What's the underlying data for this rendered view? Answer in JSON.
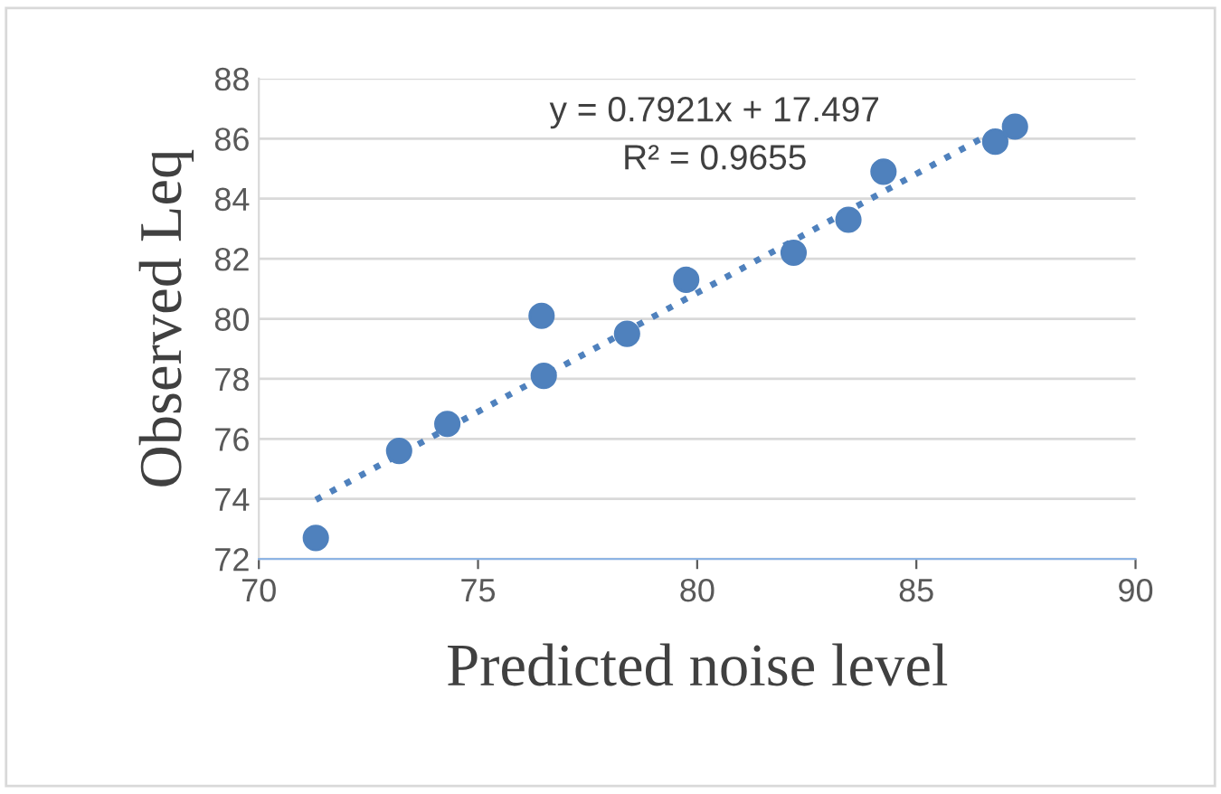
{
  "chart_data": {
    "type": "scatter",
    "xlabel": "Predicted noise level",
    "ylabel": "Observed Leq",
    "xlim": [
      70,
      90
    ],
    "xticks": [
      70,
      75,
      80,
      85,
      90
    ],
    "ylim": [
      72,
      88
    ],
    "yticks": [
      72,
      74,
      76,
      78,
      80,
      82,
      84,
      86,
      88
    ],
    "grid": "y",
    "annotations": [
      "y = 0.7921x + 17.497",
      "R² = 0.9655"
    ],
    "series": [
      {
        "marker": "circle",
        "color": "#4f81bd",
        "x": [
          71.3,
          73.2,
          74.3,
          76.45,
          76.5,
          78.4,
          79.75,
          82.2,
          83.45,
          84.25,
          86.8,
          87.25
        ],
        "values": [
          72.7,
          75.6,
          76.5,
          80.1,
          78.1,
          79.5,
          81.3,
          82.2,
          83.3,
          84.9,
          85.9,
          86.4
        ]
      },
      {
        "type": "line",
        "marker": "none",
        "color": "#4f81bd",
        "line_style": "dotted",
        "x": [
          71.3,
          87.25
        ],
        "values": [
          73.97,
          86.61
        ]
      }
    ]
  }
}
